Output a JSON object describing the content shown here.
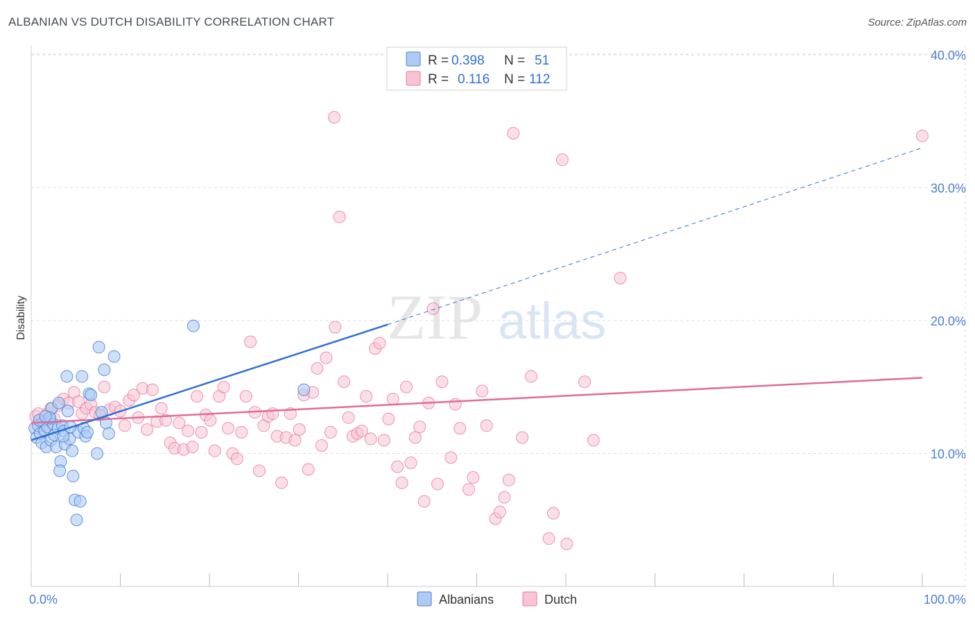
{
  "header": {
    "title": "ALBANIAN VS DUTCH DISABILITY CORRELATION CHART",
    "source": "Source: ZipAtlas.com"
  },
  "watermark": {
    "zip": "ZIP",
    "atlas": "atlas"
  },
  "colors": {
    "blue": "#4a7fd1",
    "blue_fill": "#aecbf5",
    "blue_line": "#2f6fd1",
    "pink": "#e8789e",
    "pink_fill": "#f8c4d4",
    "pink_line": "#e26a94",
    "grid": "#dddddd"
  },
  "legend": {
    "rows": [
      {
        "r_label": "R =",
        "r_value": "0.398",
        "n_label": "N =",
        "n_value": "51"
      },
      {
        "r_label": "R =",
        "r_value": "0.116",
        "n_label": "N =",
        "n_value": "112"
      }
    ]
  },
  "bottom_legend": {
    "albanians": "Albanians",
    "dutch": "Dutch"
  },
  "chart_data": {
    "type": "scatter",
    "title": "ALBANIAN VS DUTCH DISABILITY CORRELATION CHART",
    "xlabel": "",
    "ylabel": "Disability",
    "xlim": [
      0,
      100
    ],
    "ylim": [
      0,
      42
    ],
    "x_tick_labels": [
      "0.0%",
      "100.0%"
    ],
    "y_ticks": [
      10,
      20,
      30,
      40
    ],
    "y_tick_labels": [
      "10.0%",
      "20.0%",
      "30.0%",
      "40.0%"
    ],
    "grid": true,
    "legend_position": "top-center",
    "series": [
      {
        "name": "Albanians",
        "R": 0.398,
        "N": 51,
        "trend": {
          "x0": 0,
          "y0": 11.0,
          "x1": 40,
          "y1": 19.7,
          "dashed_to_x": 100,
          "dashed_to_y": 33.0
        },
        "points": [
          [
            0.4,
            11.9
          ],
          [
            0.6,
            11.2
          ],
          [
            0.8,
            12.1
          ],
          [
            1.0,
            11.5
          ],
          [
            1.2,
            10.8
          ],
          [
            1.4,
            12.4
          ],
          [
            1.5,
            11.7
          ],
          [
            1.7,
            10.5
          ],
          [
            1.8,
            12.0
          ],
          [
            2.0,
            12.6
          ],
          [
            2.2,
            11.0
          ],
          [
            2.3,
            13.4
          ],
          [
            2.5,
            12.2
          ],
          [
            2.6,
            11.4
          ],
          [
            2.8,
            10.5
          ],
          [
            3.0,
            11.9
          ],
          [
            3.1,
            13.8
          ],
          [
            3.3,
            9.4
          ],
          [
            3.5,
            12.1
          ],
          [
            3.7,
            11.7
          ],
          [
            3.8,
            10.7
          ],
          [
            4.0,
            15.8
          ],
          [
            4.1,
            13.2
          ],
          [
            4.3,
            11.1
          ],
          [
            4.6,
            10.2
          ],
          [
            4.7,
            8.3
          ],
          [
            4.9,
            6.5
          ],
          [
            5.1,
            5.0
          ],
          [
            5.3,
            11.6
          ],
          [
            5.5,
            6.4
          ],
          [
            5.7,
            15.8
          ],
          [
            5.9,
            11.9
          ],
          [
            6.1,
            11.3
          ],
          [
            6.3,
            11.6
          ],
          [
            6.5,
            14.5
          ],
          [
            6.7,
            14.4
          ],
          [
            7.4,
            10.0
          ],
          [
            7.6,
            18.0
          ],
          [
            7.9,
            13.1
          ],
          [
            8.2,
            16.3
          ],
          [
            8.4,
            12.3
          ],
          [
            8.7,
            11.5
          ],
          [
            9.3,
            17.3
          ],
          [
            18.2,
            19.6
          ],
          [
            30.6,
            14.8
          ],
          [
            3.2,
            8.7
          ],
          [
            2.1,
            12.7
          ],
          [
            0.9,
            12.5
          ],
          [
            1.6,
            12.8
          ],
          [
            4.4,
            12.0
          ],
          [
            3.6,
            11.3
          ]
        ]
      },
      {
        "name": "Dutch",
        "R": 0.116,
        "N": 112,
        "trend": {
          "x0": 0,
          "y0": 12.3,
          "x1": 100,
          "y1": 15.7
        },
        "points": [
          [
            0.5,
            12.8
          ],
          [
            1.0,
            12.4
          ],
          [
            1.4,
            12.1
          ],
          [
            1.8,
            13.0
          ],
          [
            2.2,
            13.4
          ],
          [
            2.6,
            12.6
          ],
          [
            3.0,
            13.6
          ],
          [
            3.6,
            14.1
          ],
          [
            4.2,
            13.8
          ],
          [
            4.8,
            14.6
          ],
          [
            5.3,
            13.9
          ],
          [
            5.7,
            13.0
          ],
          [
            6.2,
            13.4
          ],
          [
            6.7,
            13.7
          ],
          [
            7.2,
            13.1
          ],
          [
            7.7,
            12.9
          ],
          [
            8.2,
            15.0
          ],
          [
            8.8,
            13.3
          ],
          [
            9.4,
            13.5
          ],
          [
            10.0,
            13.2
          ],
          [
            10.5,
            12.1
          ],
          [
            11.0,
            14.0
          ],
          [
            11.5,
            14.4
          ],
          [
            12.0,
            12.7
          ],
          [
            12.5,
            14.9
          ],
          [
            13.0,
            11.8
          ],
          [
            13.6,
            14.8
          ],
          [
            14.1,
            12.4
          ],
          [
            14.6,
            13.4
          ],
          [
            15.1,
            12.5
          ],
          [
            15.6,
            10.8
          ],
          [
            16.1,
            10.4
          ],
          [
            16.6,
            12.3
          ],
          [
            17.1,
            10.3
          ],
          [
            17.6,
            11.7
          ],
          [
            18.1,
            10.5
          ],
          [
            18.6,
            14.3
          ],
          [
            19.1,
            11.6
          ],
          [
            19.6,
            12.9
          ],
          [
            20.1,
            12.5
          ],
          [
            20.6,
            10.2
          ],
          [
            21.1,
            14.3
          ],
          [
            21.6,
            15.0
          ],
          [
            22.1,
            11.9
          ],
          [
            22.6,
            10.0
          ],
          [
            23.1,
            9.6
          ],
          [
            23.6,
            11.6
          ],
          [
            24.1,
            14.3
          ],
          [
            24.6,
            18.4
          ],
          [
            25.1,
            13.1
          ],
          [
            25.6,
            8.7
          ],
          [
            26.1,
            12.1
          ],
          [
            26.6,
            12.8
          ],
          [
            27.1,
            13.0
          ],
          [
            27.6,
            11.3
          ],
          [
            28.1,
            7.8
          ],
          [
            28.6,
            11.2
          ],
          [
            29.1,
            13.0
          ],
          [
            29.6,
            11.0
          ],
          [
            30.1,
            11.8
          ],
          [
            30.6,
            14.4
          ],
          [
            31.1,
            8.8
          ],
          [
            31.6,
            14.6
          ],
          [
            32.1,
            16.4
          ],
          [
            32.6,
            10.6
          ],
          [
            33.1,
            17.2
          ],
          [
            33.6,
            11.6
          ],
          [
            34.1,
            19.5
          ],
          [
            34.6,
            27.8
          ],
          [
            35.1,
            15.4
          ],
          [
            35.6,
            12.7
          ],
          [
            36.1,
            11.3
          ],
          [
            36.6,
            11.5
          ],
          [
            37.1,
            11.7
          ],
          [
            37.6,
            14.3
          ],
          [
            38.1,
            11.1
          ],
          [
            38.6,
            17.9
          ],
          [
            39.1,
            18.3
          ],
          [
            39.6,
            11.0
          ],
          [
            40.1,
            12.6
          ],
          [
            40.6,
            14.1
          ],
          [
            41.1,
            9.0
          ],
          [
            41.6,
            7.8
          ],
          [
            42.1,
            15.0
          ],
          [
            42.6,
            9.3
          ],
          [
            43.1,
            11.2
          ],
          [
            43.6,
            12.0
          ],
          [
            44.1,
            6.4
          ],
          [
            44.6,
            13.8
          ],
          [
            45.1,
            20.9
          ],
          [
            45.6,
            7.7
          ],
          [
            46.1,
            15.4
          ],
          [
            47.1,
            9.7
          ],
          [
            47.6,
            13.7
          ],
          [
            48.1,
            11.9
          ],
          [
            49.1,
            7.3
          ],
          [
            49.6,
            8.2
          ],
          [
            50.6,
            14.7
          ],
          [
            51.1,
            12.1
          ],
          [
            52.1,
            5.1
          ],
          [
            52.6,
            5.6
          ],
          [
            53.1,
            6.7
          ],
          [
            53.6,
            8.0
          ],
          [
            54.1,
            34.1
          ],
          [
            55.1,
            11.2
          ],
          [
            56.1,
            15.8
          ],
          [
            58.1,
            3.6
          ],
          [
            58.6,
            5.5
          ],
          [
            59.6,
            32.1
          ],
          [
            60.1,
            3.2
          ],
          [
            62.1,
            15.4
          ],
          [
            63.1,
            11.0
          ],
          [
            34.0,
            35.3
          ],
          [
            66.1,
            23.2
          ],
          [
            100.0,
            33.9
          ],
          [
            0.8,
            13.0
          ]
        ]
      }
    ]
  }
}
